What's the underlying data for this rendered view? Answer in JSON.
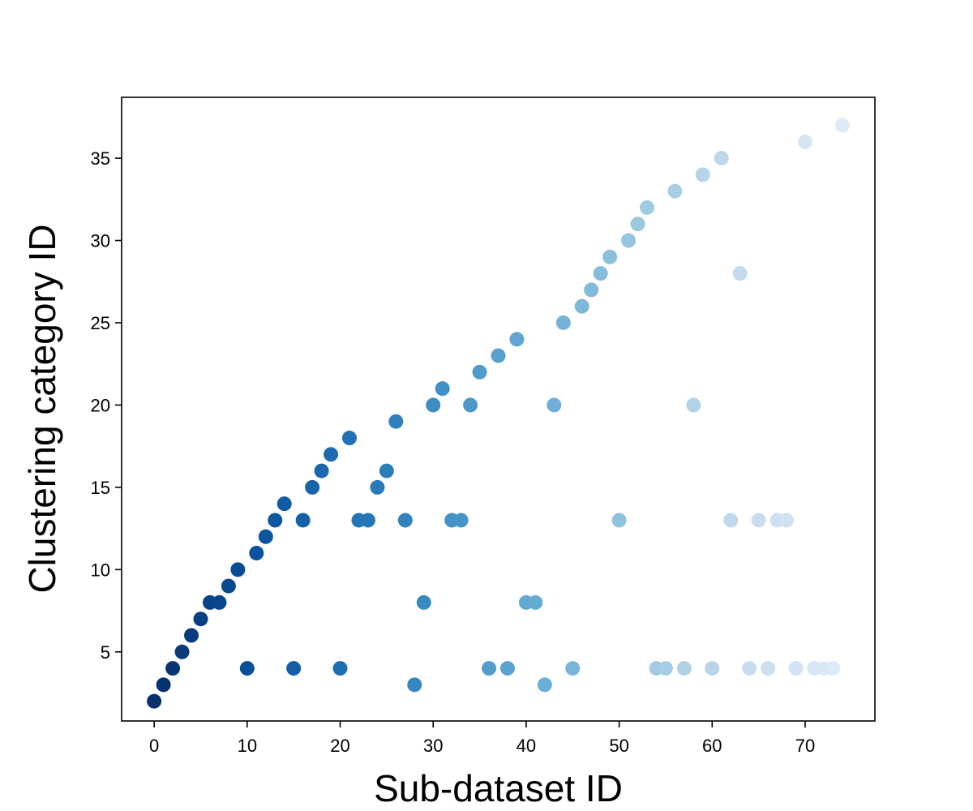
{
  "chart_data": {
    "type": "scatter",
    "title": "",
    "xlabel": "Sub-dataset ID",
    "ylabel": "Clustering category ID",
    "xlim": [
      -3.5,
      77.5
    ],
    "ylim": [
      0.8,
      38.7
    ],
    "xticks": [
      0,
      10,
      20,
      30,
      40,
      50,
      60,
      70
    ],
    "yticks": [
      5,
      10,
      15,
      20,
      25,
      30,
      35
    ],
    "grid": false,
    "legend": "none",
    "colormap": "Blues (reversed, dark to light with increasing sub-dataset ID)",
    "colormap_stops": [
      "#08306b",
      "#08519c",
      "#2171b5",
      "#4292c6",
      "#6baed6",
      "#9ecae1",
      "#c6dbef",
      "#deebf7"
    ],
    "points": [
      {
        "x": 0,
        "y": 2
      },
      {
        "x": 1,
        "y": 3
      },
      {
        "x": 2,
        "y": 4
      },
      {
        "x": 3,
        "y": 5
      },
      {
        "x": 4,
        "y": 6
      },
      {
        "x": 5,
        "y": 7
      },
      {
        "x": 6,
        "y": 8
      },
      {
        "x": 7,
        "y": 8
      },
      {
        "x": 8,
        "y": 9
      },
      {
        "x": 9,
        "y": 10
      },
      {
        "x": 10,
        "y": 4
      },
      {
        "x": 11,
        "y": 11
      },
      {
        "x": 12,
        "y": 12
      },
      {
        "x": 13,
        "y": 13
      },
      {
        "x": 14,
        "y": 14
      },
      {
        "x": 15,
        "y": 4
      },
      {
        "x": 16,
        "y": 13
      },
      {
        "x": 17,
        "y": 15
      },
      {
        "x": 18,
        "y": 16
      },
      {
        "x": 19,
        "y": 17
      },
      {
        "x": 20,
        "y": 4
      },
      {
        "x": 21,
        "y": 18
      },
      {
        "x": 22,
        "y": 13
      },
      {
        "x": 23,
        "y": 13
      },
      {
        "x": 24,
        "y": 15
      },
      {
        "x": 25,
        "y": 16
      },
      {
        "x": 26,
        "y": 19
      },
      {
        "x": 27,
        "y": 13
      },
      {
        "x": 28,
        "y": 3
      },
      {
        "x": 29,
        "y": 8
      },
      {
        "x": 30,
        "y": 20
      },
      {
        "x": 31,
        "y": 21
      },
      {
        "x": 32,
        "y": 13
      },
      {
        "x": 33,
        "y": 13
      },
      {
        "x": 34,
        "y": 20
      },
      {
        "x": 35,
        "y": 22
      },
      {
        "x": 36,
        "y": 4
      },
      {
        "x": 37,
        "y": 23
      },
      {
        "x": 38,
        "y": 4
      },
      {
        "x": 39,
        "y": 24
      },
      {
        "x": 40,
        "y": 8
      },
      {
        "x": 41,
        "y": 8
      },
      {
        "x": 42,
        "y": 3
      },
      {
        "x": 43,
        "y": 20
      },
      {
        "x": 44,
        "y": 25
      },
      {
        "x": 45,
        "y": 4
      },
      {
        "x": 46,
        "y": 26
      },
      {
        "x": 47,
        "y": 27
      },
      {
        "x": 48,
        "y": 28
      },
      {
        "x": 49,
        "y": 29
      },
      {
        "x": 50,
        "y": 13
      },
      {
        "x": 51,
        "y": 30
      },
      {
        "x": 52,
        "y": 31
      },
      {
        "x": 53,
        "y": 32
      },
      {
        "x": 54,
        "y": 4
      },
      {
        "x": 55,
        "y": 4
      },
      {
        "x": 56,
        "y": 33
      },
      {
        "x": 57,
        "y": 4
      },
      {
        "x": 58,
        "y": 20
      },
      {
        "x": 59,
        "y": 34
      },
      {
        "x": 60,
        "y": 4
      },
      {
        "x": 61,
        "y": 35
      },
      {
        "x": 62,
        "y": 13
      },
      {
        "x": 63,
        "y": 28
      },
      {
        "x": 64,
        "y": 4
      },
      {
        "x": 65,
        "y": 13
      },
      {
        "x": 66,
        "y": 4
      },
      {
        "x": 67,
        "y": 13
      },
      {
        "x": 68,
        "y": 13
      },
      {
        "x": 69,
        "y": 4
      },
      {
        "x": 70,
        "y": 36
      },
      {
        "x": 71,
        "y": 4
      },
      {
        "x": 72,
        "y": 4
      },
      {
        "x": 73,
        "y": 4
      },
      {
        "x": 74,
        "y": 37
      }
    ]
  }
}
